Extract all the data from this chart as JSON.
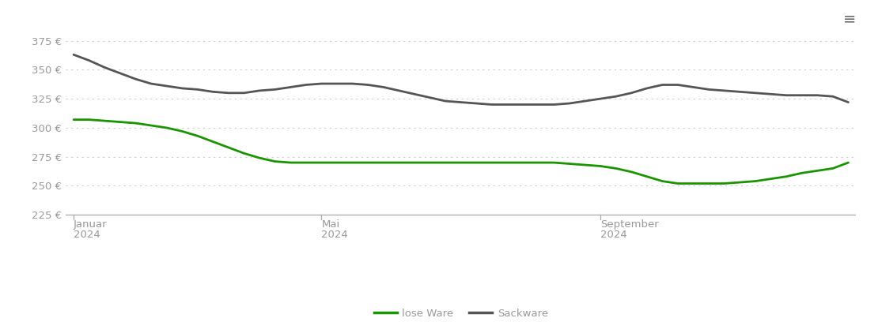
{
  "lose_ware_x": [
    0,
    1,
    2,
    3,
    4,
    5,
    6,
    7,
    8,
    9,
    10,
    11,
    12,
    13,
    14,
    15,
    16,
    17,
    18,
    19,
    20,
    21,
    22,
    23,
    24,
    25,
    26,
    27,
    28,
    29,
    30,
    31,
    32,
    33,
    34,
    35,
    36,
    37,
    38,
    39,
    40,
    41,
    42,
    43,
    44,
    45,
    46,
    47,
    48,
    49,
    50
  ],
  "lose_ware_y": [
    307,
    307,
    306,
    305,
    304,
    302,
    300,
    297,
    293,
    288,
    283,
    278,
    274,
    271,
    270,
    270,
    270,
    270,
    270,
    270,
    270,
    270,
    270,
    270,
    270,
    270,
    270,
    270,
    270,
    270,
    270,
    270,
    269,
    268,
    267,
    265,
    262,
    258,
    254,
    252,
    252,
    252,
    252,
    253,
    254,
    256,
    258,
    261,
    263,
    265,
    270
  ],
  "sackware_x": [
    0,
    1,
    2,
    3,
    4,
    5,
    6,
    7,
    8,
    9,
    10,
    11,
    12,
    13,
    14,
    15,
    16,
    17,
    18,
    19,
    20,
    21,
    22,
    23,
    24,
    25,
    26,
    27,
    28,
    29,
    30,
    31,
    32,
    33,
    34,
    35,
    36,
    37,
    38,
    39,
    40,
    41,
    42,
    43,
    44,
    45,
    46,
    47,
    48,
    49,
    50
  ],
  "sackware_y": [
    363,
    358,
    352,
    347,
    342,
    338,
    336,
    334,
    333,
    331,
    330,
    330,
    332,
    333,
    335,
    337,
    338,
    338,
    338,
    337,
    335,
    332,
    329,
    326,
    323,
    322,
    321,
    320,
    320,
    320,
    320,
    320,
    321,
    323,
    325,
    327,
    330,
    334,
    337,
    337,
    335,
    333,
    332,
    331,
    330,
    329,
    328,
    328,
    328,
    327,
    322
  ],
  "x_ticks": [
    0,
    16,
    34
  ],
  "x_tick_labels_line1": [
    "Januar",
    "Mai",
    "September"
  ],
  "x_tick_labels_line2": [
    "2024",
    "2024",
    "2024"
  ],
  "y_ticks": [
    225,
    250,
    275,
    300,
    325,
    350,
    375
  ],
  "y_tick_labels": [
    "225 €",
    "250 €",
    "275 €",
    "300 €",
    "325 €",
    "350 €",
    "375 €"
  ],
  "ylim": [
    215,
    390
  ],
  "xlim": [
    -0.5,
    50.5
  ],
  "lose_ware_color": "#1a9400",
  "sackware_color": "#555555",
  "line_width": 2.0,
  "legend_lose": "lose Ware",
  "legend_sack": "Sackware",
  "bg_color": "#ffffff",
  "grid_color": "#cccccc",
  "tick_color": "#999999",
  "axis_line_color": "#aaaaaa",
  "axis_bottom_y": 225
}
